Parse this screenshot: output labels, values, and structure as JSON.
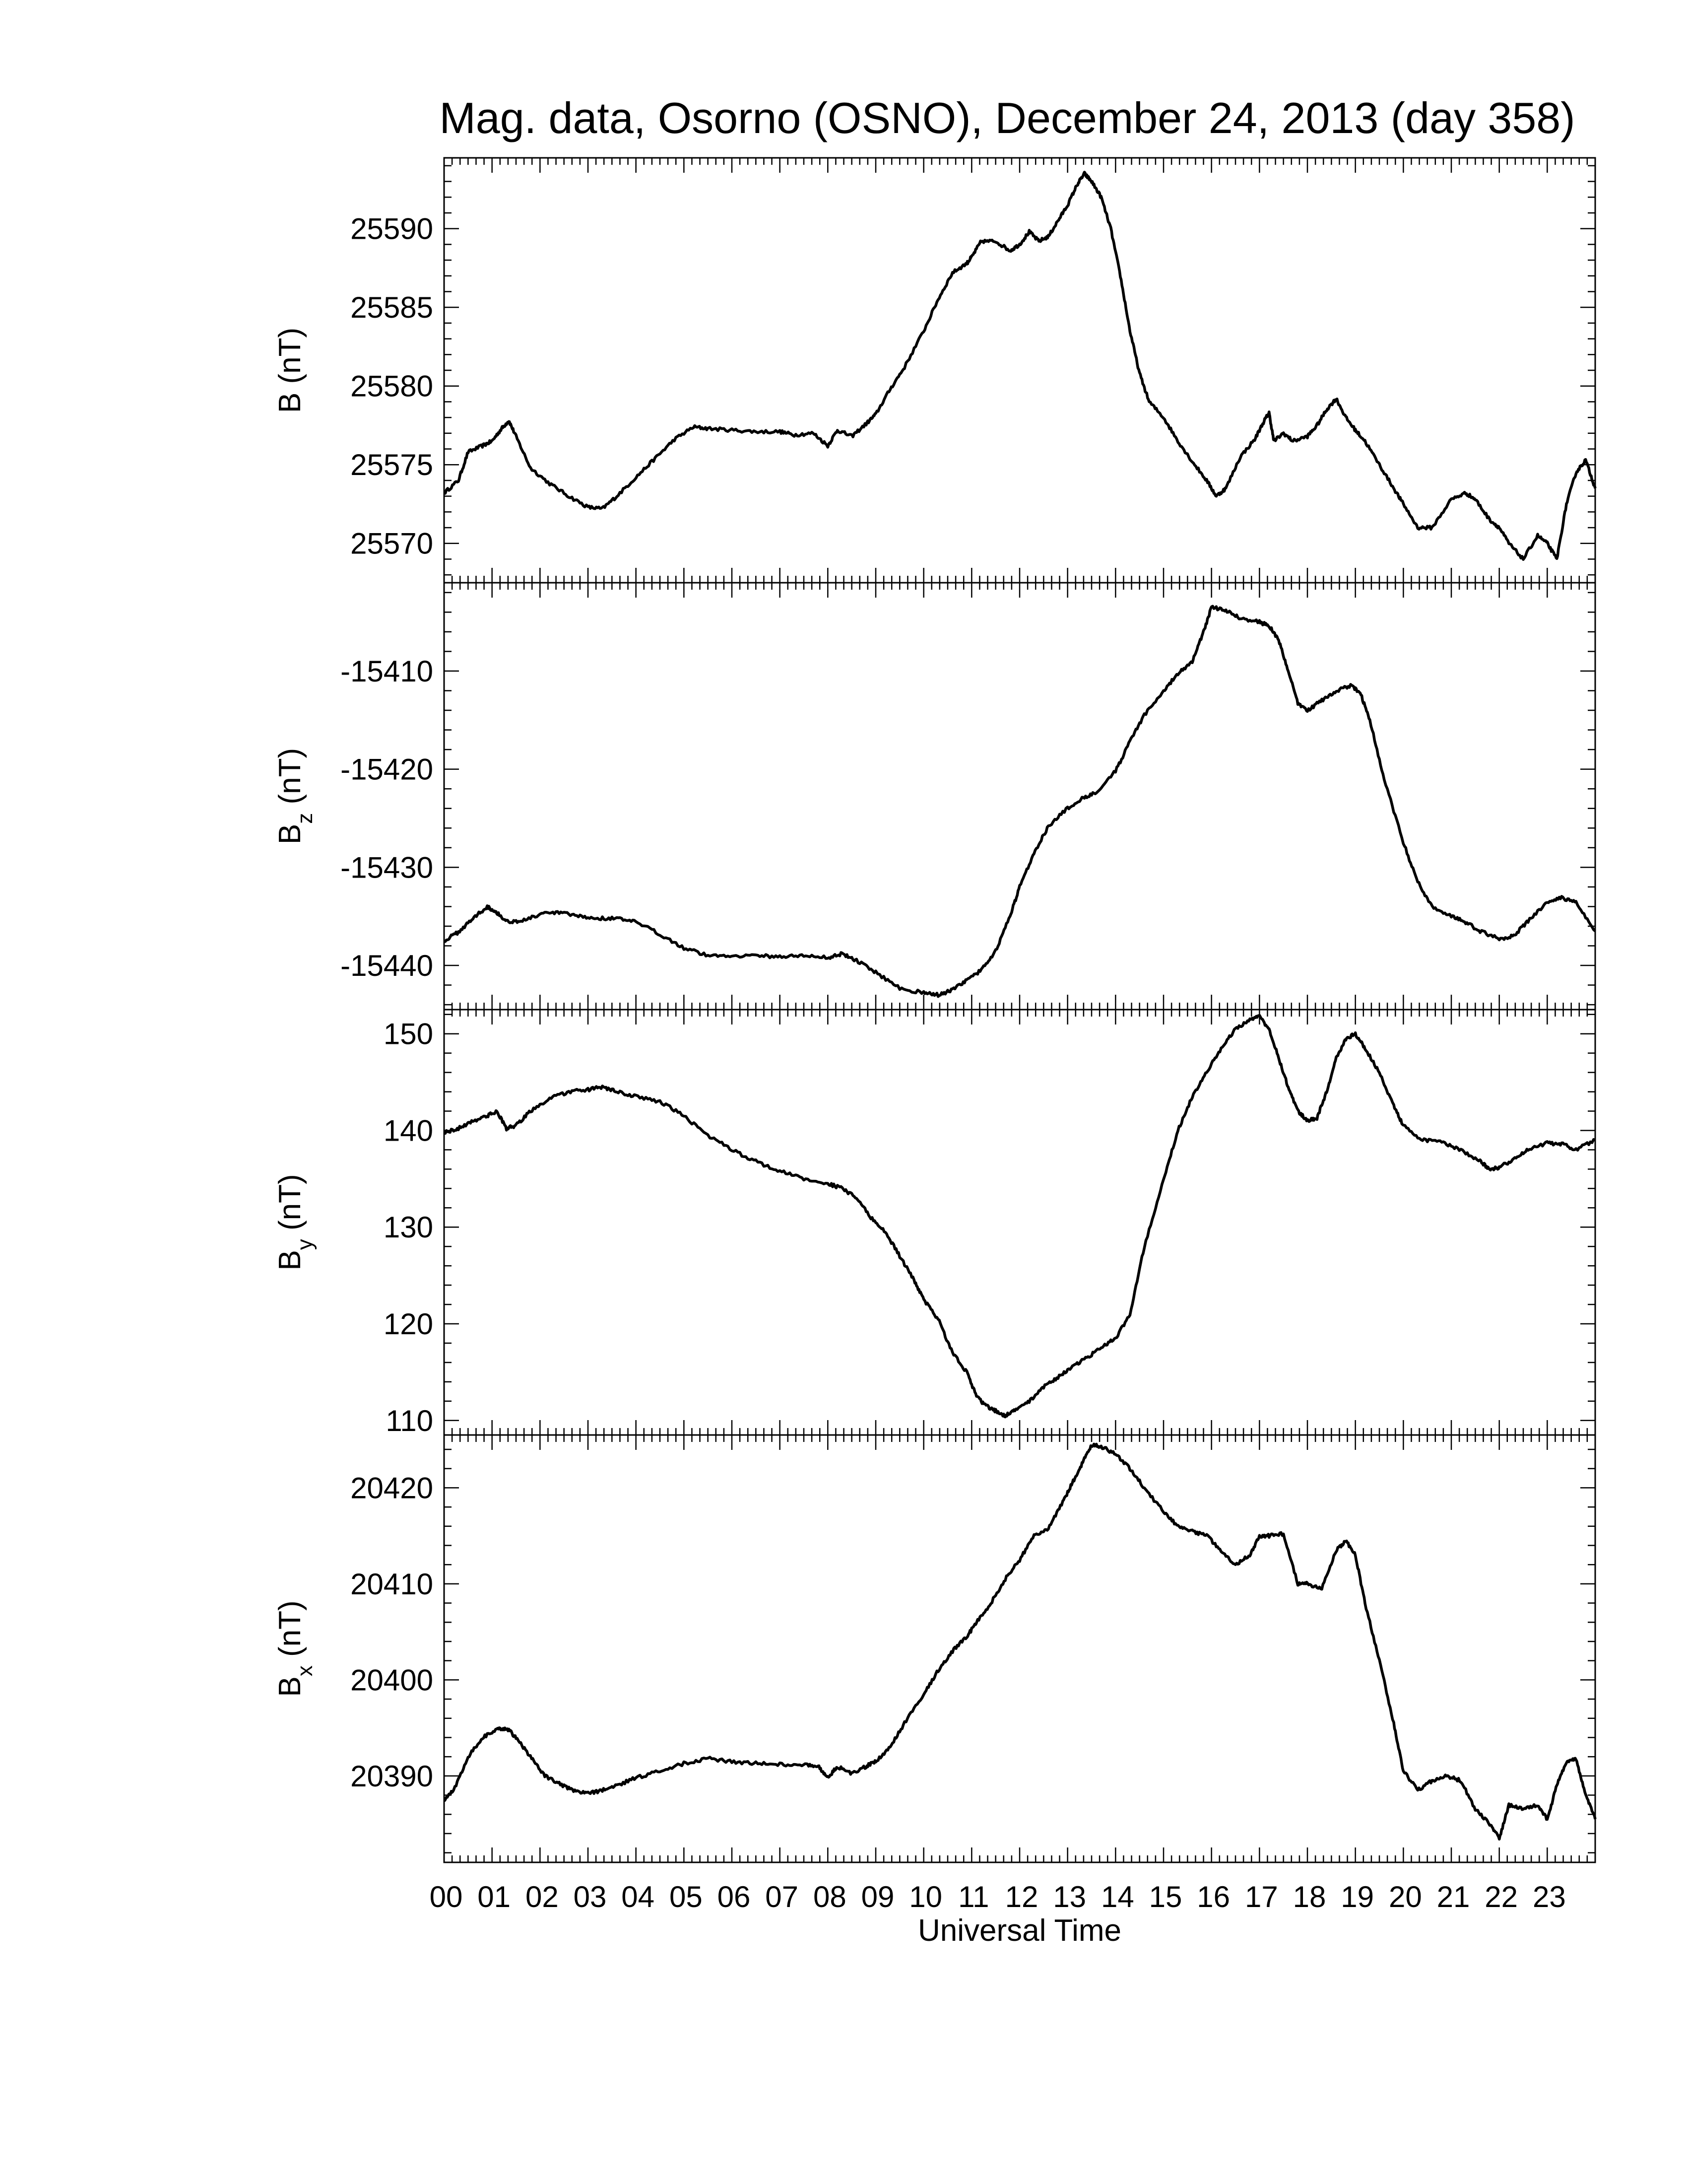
{
  "chart_data": {
    "type": "line",
    "title": "Mag. data, Osorno (OSNO), December 24, 2013 (day 358)",
    "xlabel": "Universal Time",
    "x_range": [
      0,
      24
    ],
    "x_tick_labels": [
      "00",
      "01",
      "02",
      "03",
      "04",
      "05",
      "06",
      "07",
      "08",
      "09",
      "10",
      "11",
      "12",
      "13",
      "14",
      "15",
      "16",
      "17",
      "18",
      "19",
      "20",
      "21",
      "22",
      "23"
    ],
    "panels": [
      {
        "key": "B",
        "ylabel_main": "B",
        "ylabel_sub": "",
        "ylabel_unit": "(nT)",
        "ylim": [
          25567.5,
          25594.5
        ],
        "y_ticks": [
          25570,
          25575,
          25580,
          25585,
          25590
        ],
        "series": [
          {
            "x": [
              0,
              0.3,
              0.5,
              0.8,
              1.0,
              1.2,
              1.35,
              1.5,
              1.8,
              2.2,
              2.6,
              3.0,
              3.3,
              3.6,
              4.0,
              4.4,
              4.8,
              5.2,
              5.5,
              6.0,
              6.5,
              7.0,
              7.3,
              7.7,
              8.0,
              8.2,
              8.5,
              8.8,
              9.0,
              9.3,
              9.6,
              10.0,
              10.3,
              10.6,
              10.9,
              11.0,
              11.2,
              11.5,
              11.8,
              12.0,
              12.2,
              12.4,
              12.6,
              12.8,
              13.0,
              13.2,
              13.35,
              13.5,
              13.7,
              13.9,
              14.1,
              14.3,
              14.5,
              14.7,
              15.0,
              15.3,
              15.6,
              15.9,
              16.1,
              16.3,
              16.6,
              16.9,
              17.1,
              17.2,
              17.3,
              17.5,
              17.7,
              18.0,
              18.2,
              18.4,
              18.6,
              18.8,
              19.0,
              19.2,
              19.5,
              19.8,
              20.0,
              20.3,
              20.6,
              21.0,
              21.3,
              21.5,
              21.8,
              22.0,
              22.2,
              22.5,
              22.8,
              23.0,
              23.2,
              23.4,
              23.6,
              23.8,
              24.0
            ],
            "y": [
              25573.2,
              25574.0,
              25575.8,
              25576.2,
              25576.5,
              25577.3,
              25577.8,
              25576.8,
              25574.8,
              25573.8,
              25573.0,
              25572.3,
              25572.2,
              25573.0,
              25574.2,
              25575.4,
              25576.6,
              25577.4,
              25577.3,
              25577.2,
              25577.1,
              25577.1,
              25576.9,
              25577.0,
              25576.2,
              25577.2,
              25576.8,
              25577.6,
              25578.2,
              25579.8,
              25581.2,
              25583.5,
              25585.5,
              25587.2,
              25587.8,
              25588.2,
              25589.2,
              25589.2,
              25588.6,
              25589.0,
              25589.8,
              25589.2,
              25589.5,
              25590.5,
              25591.5,
              25592.8,
              25593.5,
              25593.0,
              25592.0,
              25590.0,
              25587.0,
              25583.5,
              25580.8,
              25579.0,
              25578.0,
              25576.5,
              25575.2,
              25574.0,
              25573.0,
              25573.5,
              25575.5,
              25576.6,
              25577.8,
              25578.3,
              25576.5,
              25577.0,
              25576.5,
              25576.8,
              25577.5,
              25578.5,
              25579.2,
              25578.0,
              25577.2,
              25576.5,
              25575.0,
              25573.5,
              25572.5,
              25571.0,
              25571.0,
              25572.8,
              25573.2,
              25572.8,
              25571.5,
              25571.0,
              25570.0,
              25569.0,
              25570.5,
              25570.0,
              25569.0,
              25572.5,
              25574.5,
              25575.3,
              25573.5
            ]
          }
        ]
      },
      {
        "key": "Bz",
        "ylabel_main": "B",
        "ylabel_sub": "z",
        "ylabel_unit": "(nT)",
        "ylim": [
          -15444.5,
          -15401.0
        ],
        "y_ticks": [
          -15440,
          -15430,
          -15420,
          -15410
        ],
        "series": [
          {
            "x": [
              0,
              0.3,
              0.6,
              0.9,
              1.1,
              1.3,
              1.6,
              2.0,
              2.4,
              2.8,
              3.2,
              3.6,
              4.0,
              4.5,
              5.0,
              5.5,
              6.0,
              6.5,
              7.0,
              7.5,
              8.0,
              8.3,
              8.6,
              9.0,
              9.5,
              10.0,
              10.3,
              10.6,
              10.9,
              11.2,
              11.5,
              11.8,
              12.0,
              12.3,
              12.6,
              13.0,
              13.3,
              13.6,
              14.0,
              14.3,
              14.6,
              15.0,
              15.3,
              15.6,
              15.8,
              16.0,
              16.3,
              16.6,
              17.0,
              17.2,
              17.4,
              17.6,
              17.8,
              18.0,
              18.3,
              18.6,
              18.9,
              19.1,
              19.3,
              19.6,
              20.0,
              20.3,
              20.6,
              21.0,
              21.3,
              21.6,
              22.0,
              22.3,
              22.6,
              23.0,
              23.3,
              23.6,
              24.0
            ],
            "y": [
              -15437.5,
              -15436.6,
              -15435.2,
              -15434.0,
              -15434.6,
              -15435.5,
              -15435.5,
              -15434.8,
              -15434.6,
              -15435.0,
              -15435.2,
              -15435.2,
              -15435.6,
              -15436.8,
              -15438.2,
              -15439.0,
              -15439.0,
              -15439.0,
              -15439.1,
              -15439.0,
              -15439.2,
              -15438.8,
              -15439.5,
              -15440.7,
              -15442.3,
              -15442.8,
              -15443.0,
              -15442.5,
              -15441.5,
              -15440.5,
              -15438.5,
              -15435.0,
              -15432.0,
              -15428.5,
              -15425.8,
              -15424.0,
              -15423.0,
              -15422.3,
              -15420.2,
              -15417.2,
              -15414.5,
              -15412.0,
              -15410.3,
              -15409.0,
              -15406.5,
              -15403.5,
              -15403.8,
              -15404.6,
              -15405.0,
              -15405.4,
              -15406.8,
              -15410.0,
              -15413.3,
              -15414.0,
              -15413.0,
              -15412.0,
              -15411.5,
              -15412.2,
              -15415.0,
              -15421.0,
              -15427.5,
              -15431.5,
              -15434.0,
              -15435.0,
              -15435.6,
              -15436.5,
              -15437.3,
              -15437.0,
              -15435.5,
              -15433.5,
              -15433.1,
              -15433.6,
              -15436.5
            ]
          }
        ]
      },
      {
        "key": "By",
        "ylabel_main": "B",
        "ylabel_sub": "y",
        "ylabel_unit": "(nT)",
        "ylim": [
          108.5,
          152.5
        ],
        "y_ticks": [
          110,
          120,
          130,
          140,
          150
        ],
        "series": [
          {
            "x": [
              0,
              0.3,
              0.6,
              0.9,
              1.1,
              1.3,
              1.5,
              1.8,
              2.2,
              2.6,
              3.0,
              3.3,
              3.6,
              4.0,
              4.5,
              5.0,
              5.5,
              6.0,
              6.5,
              7.0,
              7.5,
              8.0,
              8.3,
              8.6,
              8.9,
              9.2,
              9.5,
              9.8,
              10.0,
              10.3,
              10.6,
              10.9,
              11.1,
              11.3,
              11.5,
              11.7,
              11.9,
              12.2,
              12.5,
              12.8,
              13.1,
              13.4,
              13.7,
              14.0,
              14.3,
              14.6,
              15.0,
              15.3,
              15.6,
              15.9,
              16.2,
              16.5,
              16.8,
              17.0,
              17.2,
              17.4,
              17.6,
              17.8,
              18.0,
              18.2,
              18.4,
              18.6,
              18.8,
              19.0,
              19.2,
              19.5,
              19.8,
              20.0,
              20.4,
              20.8,
              21.2,
              21.6,
              21.8,
              22.0,
              22.3,
              22.6,
              23.0,
              23.3,
              23.6,
              24.0
            ],
            "y": [
              139.8,
              140.2,
              141.0,
              141.5,
              142.0,
              140.2,
              140.5,
              142.0,
              143.3,
              144.0,
              144.2,
              144.5,
              144.0,
              143.5,
              143.0,
              141.5,
              139.5,
              138.0,
              136.8,
              135.8,
              135.0,
              134.5,
              134.0,
              133.0,
              131.0,
              129.5,
              127.0,
              124.5,
              122.5,
              120.5,
              117.0,
              115.0,
              112.5,
              111.5,
              111.0,
              110.5,
              111.0,
              112.0,
              113.5,
              114.5,
              115.5,
              116.5,
              117.5,
              118.5,
              121.0,
              128.0,
              135.0,
              140.0,
              143.5,
              146.0,
              148.5,
              150.5,
              151.5,
              151.8,
              150.5,
              147.5,
              144.5,
              142.0,
              141.0,
              141.3,
              144.0,
              147.5,
              149.5,
              150.0,
              148.5,
              146.0,
              142.5,
              140.5,
              139.0,
              138.8,
              138.0,
              136.8,
              136.0,
              136.2,
              137.0,
              138.0,
              138.7,
              138.6,
              138.0,
              139.0
            ]
          }
        ]
      },
      {
        "key": "Bx",
        "ylabel_main": "B",
        "ylabel_sub": "x",
        "ylabel_unit": "(nT)",
        "ylim": [
          20381.0,
          20425.5
        ],
        "y_ticks": [
          20390,
          20400,
          20410,
          20420
        ],
        "series": [
          {
            "x": [
              0,
              0.2,
              0.5,
              0.8,
              1.1,
              1.3,
              1.5,
              1.8,
              2.1,
              2.4,
              2.7,
              3.0,
              3.3,
              3.6,
              4.0,
              4.5,
              5.0,
              5.5,
              6.0,
              6.5,
              7.0,
              7.5,
              7.8,
              8.0,
              8.2,
              8.5,
              8.8,
              9.0,
              9.3,
              9.6,
              10.0,
              10.3,
              10.6,
              10.9,
              11.1,
              11.4,
              11.7,
              12.0,
              12.3,
              12.6,
              12.9,
              13.1,
              13.3,
              13.5,
              13.7,
              14.0,
              14.3,
              14.6,
              15.0,
              15.3,
              15.6,
              15.9,
              16.2,
              16.5,
              16.8,
              17.0,
              17.2,
              17.5,
              17.8,
              18.0,
              18.3,
              18.6,
              18.8,
              19.0,
              19.2,
              19.5,
              19.8,
              20.0,
              20.3,
              20.6,
              20.9,
              21.2,
              21.5,
              21.8,
              22.0,
              22.2,
              22.5,
              22.8,
              23.0,
              23.2,
              23.4,
              23.6,
              23.8,
              24.0
            ],
            "y": [
              20387.5,
              20388.5,
              20392.0,
              20394.0,
              20394.8,
              20395.0,
              20394.0,
              20392.0,
              20390.0,
              20389.2,
              20388.4,
              20388.2,
              20388.5,
              20389.0,
              20389.8,
              20390.5,
              20391.3,
              20391.8,
              20391.5,
              20391.3,
              20391.2,
              20391.2,
              20391.0,
              20389.8,
              20391.0,
              20390.2,
              20391.0,
              20391.5,
              20393.0,
              20395.5,
              20398.5,
              20401.0,
              20403.0,
              20404.5,
              20406.0,
              20408.0,
              20410.5,
              20412.5,
              20415.0,
              20415.8,
              20418.5,
              20420.5,
              20422.5,
              20424.5,
              20424.3,
              20423.5,
              20422.0,
              20420.0,
              20417.5,
              20416.0,
              20415.5,
              20415.0,
              20413.5,
              20412.0,
              20413.0,
              20415.0,
              20415.0,
              20415.2,
              20410.0,
              20410.0,
              20409.5,
              20413.5,
              20414.5,
              20413.0,
              20408.0,
              20402.0,
              20395.5,
              20390.5,
              20388.5,
              20389.5,
              20390.0,
              20389.5,
              20386.5,
              20385.0,
              20383.5,
              20387.0,
              20386.5,
              20387.0,
              20385.5,
              20389.0,
              20391.5,
              20391.7,
              20388.0,
              20385.5
            ]
          }
        ]
      }
    ]
  }
}
